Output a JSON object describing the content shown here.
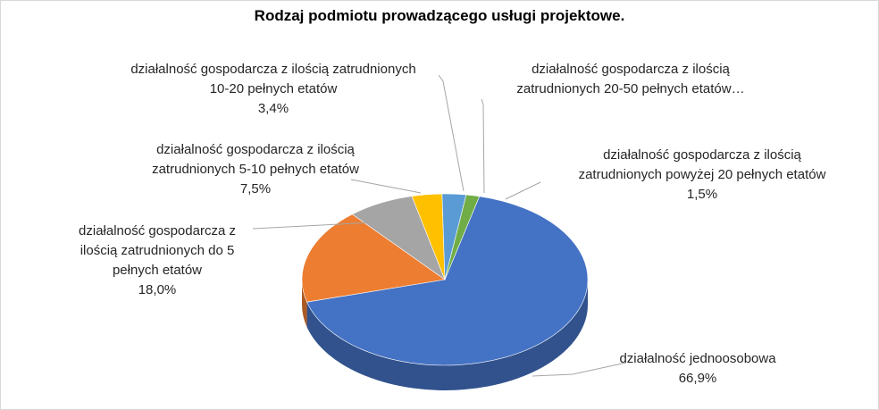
{
  "chart_data": {
    "type": "pie",
    "title": "Rodzaj podmiotu prowadzącego usługi projektowe.",
    "slices": [
      {
        "name": "działalność jednoosobowa",
        "value": 66.9,
        "label_lines": [
          "działalność jednoosobowa"
        ],
        "value_label": "66,9%",
        "color": "#4472c4"
      },
      {
        "name": "działalność gospodarcza z ilością zatrudnionych do 5 pełnych etatów",
        "value": 18.0,
        "label_lines": [
          "działalność gospodarcza z",
          "ilością zatrudnionych do 5",
          "pełnych etatów"
        ],
        "value_label": "18,0%",
        "color": "#ed7d31"
      },
      {
        "name": "działalność gospodarcza z ilością zatrudnionych 5-10 pełnych etatów",
        "value": 7.5,
        "label_lines": [
          "działalność gospodarcza z ilością",
          "zatrudnionych 5-10 pełnych etatów"
        ],
        "value_label": "7,5%",
        "color": "#a5a5a5"
      },
      {
        "name": "działalność gospodarcza z ilością zatrudnionych 10-20 pełnych etatów",
        "value": 3.4,
        "label_lines": [
          "działalność gospodarcza z ilością zatrudnionych",
          "10-20 pełnych etatów"
        ],
        "value_label": "3,4%",
        "color": "#ffc000"
      },
      {
        "name": "działalność gospodarcza z ilością zatrudnionych 20-50 pełnych etatów…",
        "value": 2.7,
        "label_lines": [
          "działalność gospodarcza z ilością",
          "zatrudnionych 20-50 pełnych etatów…"
        ],
        "value_label": "",
        "color": "#5b9bd5"
      },
      {
        "name": "działalność gospodarcza z ilością zatrudnionych powyżej 20 pełnych etatów",
        "value": 1.5,
        "label_lines": [
          "działalność gospodarcza z ilością",
          "zatrudnionych powyżej 20 pełnych etatów"
        ],
        "value_label": "1,5%",
        "color": "#70ad47"
      }
    ]
  }
}
